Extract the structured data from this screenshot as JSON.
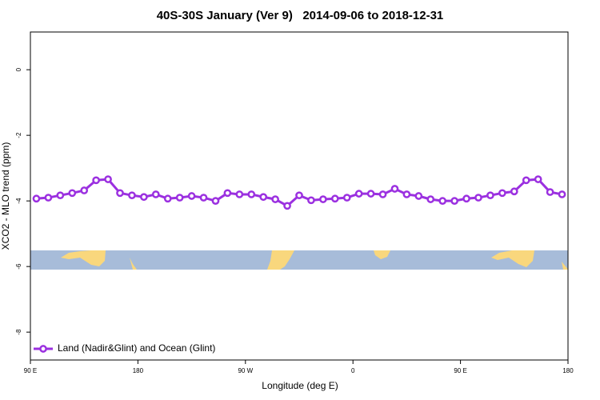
{
  "chart_data": {
    "type": "line",
    "title": "40S-30S January (Ver 9)   2014-09-06 to 2018-12-31",
    "xlabel": "Longitude (deg E)",
    "ylabel": "XCO2 - MLO trend (ppm)",
    "x": [
      95,
      105,
      115,
      125,
      135,
      145,
      155,
      165,
      175,
      185,
      195,
      205,
      215,
      225,
      235,
      245,
      255,
      265,
      275,
      285,
      295,
      305,
      315,
      325,
      335,
      345,
      355,
      365,
      375,
      385,
      395,
      405,
      415,
      425,
      435,
      445,
      455,
      465,
      475,
      485,
      495,
      505,
      515,
      525,
      535
    ],
    "series": [
      {
        "name": "Land (Nadir&Glint) and Ocean (Glint)",
        "color": "#9b30e0",
        "values": [
          -3.93,
          -3.9,
          -3.83,
          -3.76,
          -3.68,
          -3.37,
          -3.34,
          -3.76,
          -3.83,
          -3.88,
          -3.8,
          -3.93,
          -3.9,
          -3.85,
          -3.9,
          -4.0,
          -3.76,
          -3.8,
          -3.8,
          -3.88,
          -3.95,
          -4.15,
          -3.83,
          -3.98,
          -3.95,
          -3.93,
          -3.9,
          -3.78,
          -3.78,
          -3.8,
          -3.63,
          -3.8,
          -3.85,
          -3.95,
          -4.0,
          -4.0,
          -3.93,
          -3.9,
          -3.83,
          -3.76,
          -3.71,
          -3.37,
          -3.34,
          -3.73,
          -3.8
        ]
      }
    ],
    "xlim": [
      90,
      540
    ],
    "xticks": [
      {
        "value": 90,
        "label": "90 E"
      },
      180,
      {
        "value": 270,
        "label": "90 W"
      },
      {
        "value": 360,
        "label": "0"
      },
      {
        "value": 450,
        "label": "90 E"
      },
      {
        "value": 540,
        "label": "180"
      }
    ],
    "ylim": [
      -8.85,
      1.15
    ],
    "yticks": [
      0,
      -2,
      -4,
      -6,
      -8
    ],
    "legend": "lower left"
  }
}
